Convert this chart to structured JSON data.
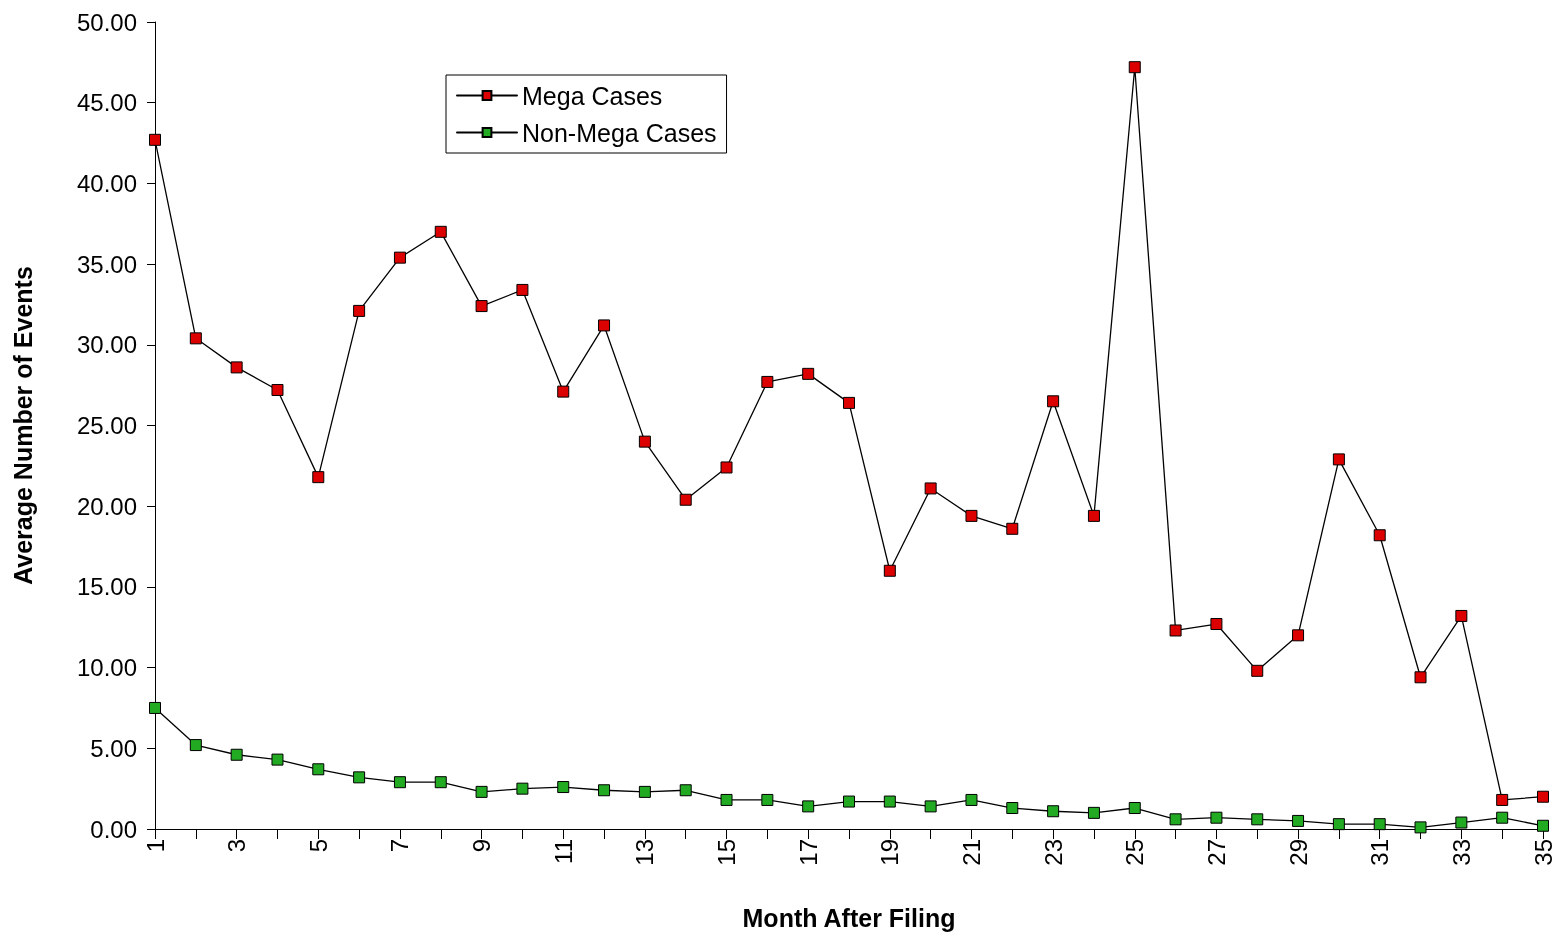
{
  "chart_data": {
    "type": "line",
    "xlabel": "Month After Filing",
    "ylabel": "Average Number of Events",
    "categories": [
      "1",
      null,
      "3",
      null,
      "5",
      null,
      "7",
      null,
      "9",
      null,
      "11",
      null,
      "13",
      null,
      "15",
      null,
      "17",
      null,
      "19",
      null,
      "21",
      null,
      "23",
      null,
      "25",
      null,
      "27",
      null,
      "29",
      null,
      "31",
      null,
      "33",
      null,
      "35"
    ],
    "series": [
      {
        "name": "Mega Cases",
        "color": "#dd0000",
        "values": [
          42.7,
          30.4,
          28.6,
          27.2,
          21.8,
          32.1,
          35.4,
          37.0,
          32.4,
          33.4,
          27.1,
          31.2,
          24.0,
          20.4,
          22.4,
          27.7,
          28.2,
          26.4,
          16.0,
          21.1,
          19.4,
          18.6,
          26.5,
          19.4,
          47.2,
          12.3,
          12.7,
          9.8,
          12.0,
          22.9,
          18.2,
          9.4,
          13.2,
          1.8,
          2.0
        ]
      },
      {
        "name": "Non-Mega Cases",
        "color": "#22aa22",
        "values": [
          7.5,
          5.2,
          4.6,
          4.3,
          3.7,
          3.2,
          2.9,
          2.9,
          2.3,
          2.5,
          2.6,
          2.4,
          2.3,
          2.4,
          1.8,
          1.8,
          1.4,
          1.7,
          1.7,
          1.4,
          1.8,
          1.3,
          1.1,
          1.0,
          1.3,
          0.6,
          0.7,
          0.6,
          0.5,
          0.3,
          0.3,
          0.1,
          0.4,
          0.7,
          0.2
        ]
      }
    ],
    "ylim": [
      0,
      50
    ],
    "yticks": [
      {
        "value": 0,
        "label": "0.00"
      },
      {
        "value": 5,
        "label": "5.00"
      },
      {
        "value": 10,
        "label": "10.00"
      },
      {
        "value": 15,
        "label": "15.00"
      },
      {
        "value": 20,
        "label": "20.00"
      },
      {
        "value": 25,
        "label": "25.00"
      },
      {
        "value": 30,
        "label": "30.00"
      },
      {
        "value": 35,
        "label": "35.00"
      },
      {
        "value": 40,
        "label": "40.00"
      },
      {
        "value": 45,
        "label": "45.00"
      },
      {
        "value": 50,
        "label": "50.00"
      }
    ],
    "legend": "top left",
    "marker": "square",
    "line_style": "solid",
    "grid": false
  }
}
